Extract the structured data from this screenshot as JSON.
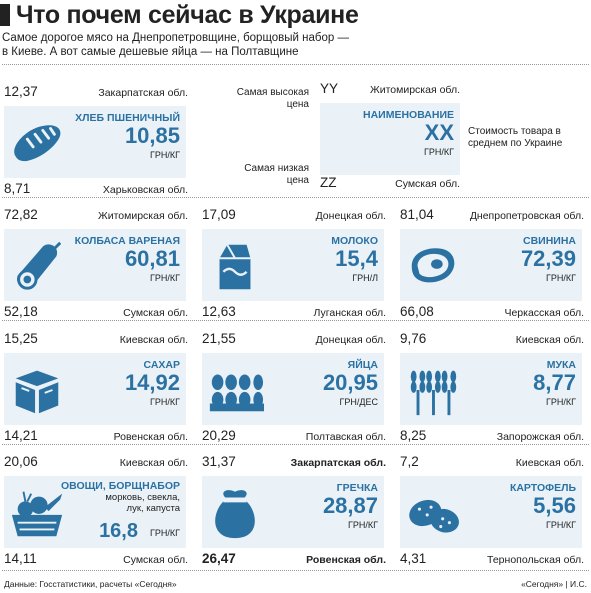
{
  "header": {
    "title": "Что почем сейчас в Украине",
    "intro_line1": "Самое дорогое мясо на Днепропетровщине, борщовый набор —",
    "intro_line2": "в Киеве. А вот самые дешевые яйца — на Полтавщине"
  },
  "legend": {
    "top_value": "YY",
    "top_label_1": "Самая высокая",
    "top_label_2": "цена",
    "top_region": "Житомирская обл.",
    "name": "НАИМЕНОВАНИЕ",
    "price": "XX",
    "unit": "ГРН/КГ",
    "bottom_value": "ZZ",
    "bottom_label_1": "Самая низкая",
    "bottom_label_2": "цена",
    "bottom_region": "Сумская обл.",
    "side_note_1": "Стоимость товара в",
    "side_note_2": "среднем по Украине"
  },
  "chart_data": {
    "type": "table",
    "title": "Что почем сейчас в Украине",
    "columns": [
      "product",
      "average_price",
      "unit",
      "max_price",
      "max_region",
      "min_price",
      "min_region"
    ],
    "rows": [
      {
        "name": "ХЛЕБ ПШЕНИЧНЫЙ",
        "sub": "",
        "price": "10,85",
        "unit": "ГРН/КГ",
        "max": "12,37",
        "max_region": "Закарпатская обл.",
        "min": "8,71",
        "min_region": "Харьковская обл.",
        "icon": "bread-icon",
        "bold_regions": false
      },
      {
        "name": "КОЛБАСА ВАРЕНАЯ",
        "sub": "",
        "price": "60,81",
        "unit": "ГРН/КГ",
        "max": "72,82",
        "max_region": "Житомирская обл.",
        "min": "52,18",
        "min_region": "Сумская обл.",
        "icon": "sausage-icon",
        "bold_regions": false
      },
      {
        "name": "МОЛОКО",
        "sub": "",
        "price": "15,4",
        "unit": "ГРН/Л",
        "max": "17,09",
        "max_region": "Донецкая обл.",
        "min": "12,63",
        "min_region": "Луганская обл.",
        "icon": "milk-carton-icon",
        "bold_regions": false
      },
      {
        "name": "СВИНИНА",
        "sub": "",
        "price": "72,39",
        "unit": "ГРН/КГ",
        "max": "81,04",
        "max_region": "Днепропетровская обл.",
        "min": "66,08",
        "min_region": "Черкасская обл.",
        "icon": "steak-icon",
        "bold_regions": false
      },
      {
        "name": "САХАР",
        "sub": "",
        "price": "14,92",
        "unit": "ГРН/КГ",
        "max": "15,25",
        "max_region": "Киевская обл.",
        "min": "14,21",
        "min_region": "Ровенская обл.",
        "icon": "sugar-box-icon",
        "bold_regions": false
      },
      {
        "name": "ЯЙЦА",
        "sub": "",
        "price": "20,95",
        "unit": "ГРН/ДЕС",
        "max": "21,55",
        "max_region": "Донецкая обл.",
        "min": "20,29",
        "min_region": "Полтавская обл.",
        "icon": "eggs-icon",
        "bold_regions": false
      },
      {
        "name": "МУКА",
        "sub": "",
        "price": "8,77",
        "unit": "ГРН/КГ",
        "max": "9,76",
        "max_region": "Киевская обл.",
        "min": "8,25",
        "min_region": "Запорожская обл.",
        "icon": "wheat-icon",
        "bold_regions": false
      },
      {
        "name": "ОВОЩИ, БОРЩНАБОР",
        "sub": "морковь, свекла,|лук, капуста",
        "price": "16,8",
        "unit": "ГРН/КГ",
        "max": "20,06",
        "max_region": "Киевская обл.",
        "min": "14,11",
        "min_region": "Сумская обл.",
        "icon": "vegetables-basket-icon",
        "bold_regions": false
      },
      {
        "name": "ГРЕЧКА",
        "sub": "",
        "price": "28,87",
        "unit": "ГРН/КГ",
        "max": "31,37",
        "max_region": "Закарпатская обл.",
        "min": "26,47",
        "min_region": "Ровенская обл.",
        "icon": "grain-sack-icon",
        "bold_regions": true
      },
      {
        "name": "КАРТОФЕЛЬ",
        "sub": "",
        "price": "5,56",
        "unit": "ГРН/КГ",
        "max": "7,2",
        "max_region": "Киевская обл.",
        "min": "4,31",
        "min_region": "Тернопольская обл.",
        "icon": "potatoes-icon",
        "bold_regions": false
      }
    ]
  },
  "footer": {
    "source": "Данные: Госстатистики, расчеты «Сегодня»",
    "credit": "«Сегодня» | И.С."
  },
  "colors": {
    "accent": "#2b72a3",
    "box_bg": "#eaf2f8",
    "text": "#222222"
  }
}
